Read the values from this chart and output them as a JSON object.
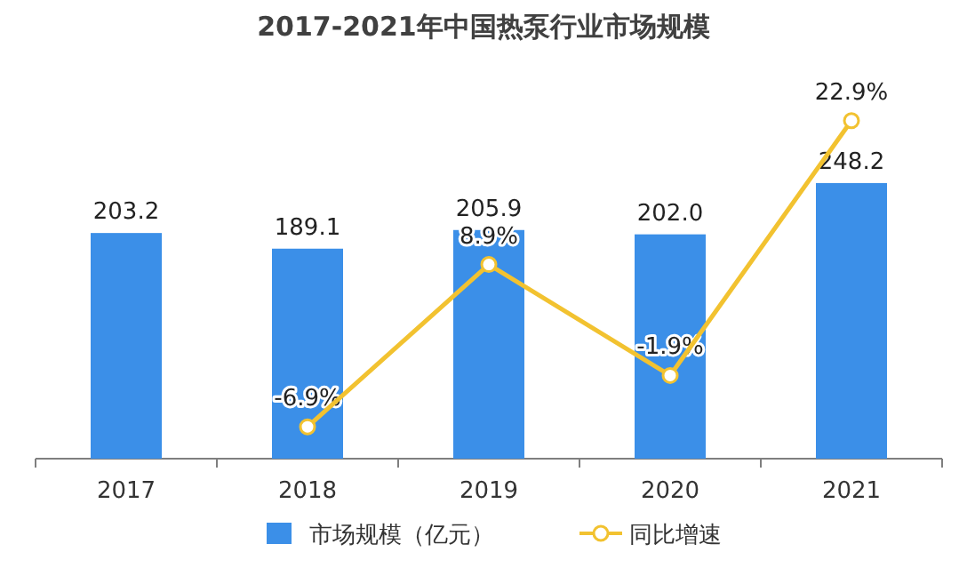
{
  "chart_data": {
    "type": "bar",
    "title": "2017-2021年中国热泵行业市场规模",
    "categories": [
      "2017",
      "2018",
      "2019",
      "2020",
      "2021"
    ],
    "series": [
      {
        "name": "市场规模（亿元）",
        "color": "#3b8fe8",
        "values": [
          203.2,
          189.1,
          205.9,
          202.0,
          248.2
        ],
        "value_labels": [
          "203.2",
          "189.1",
          "205.9",
          "202.0",
          "248.2"
        ]
      },
      {
        "name": "同比增速",
        "type": "line",
        "axis": "y2",
        "color": "#f2c230",
        "marker": "circle",
        "values": [
          null,
          -6.9,
          8.9,
          -1.9,
          22.9
        ],
        "value_labels": [
          null,
          "-6.9%",
          "8.9%",
          "-1.9%",
          "22.9%"
        ]
      }
    ],
    "legend": "bottom"
  }
}
